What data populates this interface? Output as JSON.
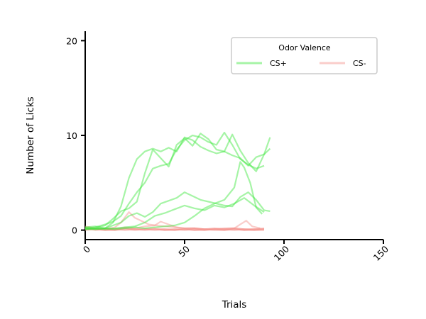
{
  "chart_data": {
    "type": "line",
    "title": "",
    "xlabel": "Trials",
    "ylabel": "Number of Licks",
    "xlim": [
      0,
      150
    ],
    "ylim": [
      -1,
      21
    ],
    "xticks": [
      0,
      50,
      100,
      150
    ],
    "yticks": [
      0,
      10,
      20
    ],
    "grid": false,
    "legend": {
      "title": "Odor Valence",
      "placement": "top-right",
      "entries": [
        {
          "label": "CS+",
          "color": "#39e639"
        },
        {
          "label": "CS-",
          "color": "#f4908a"
        }
      ]
    },
    "series": [
      {
        "group": "CS+",
        "color": "#39e639",
        "x": [
          0,
          5,
          10,
          14,
          18,
          22,
          26,
          30,
          34,
          38,
          42,
          46,
          50,
          54,
          58,
          62,
          66,
          70,
          74,
          78,
          82,
          86,
          90,
          93
        ],
        "y": [
          0.3,
          0.4,
          0.2,
          0.8,
          2.5,
          5.5,
          7.5,
          8.3,
          8.6,
          8.3,
          8.7,
          8.3,
          9.8,
          9.5,
          8.8,
          8.4,
          8.1,
          8.3,
          7.9,
          7.6,
          6.8,
          7.7,
          8.0,
          8.6
        ]
      },
      {
        "group": "CS+",
        "color": "#39e639",
        "x": [
          0,
          5,
          10,
          14,
          18,
          22,
          26,
          30,
          34,
          38,
          42,
          46,
          50,
          54,
          58,
          62,
          66,
          70,
          74,
          78,
          82,
          86,
          90,
          93
        ],
        "y": [
          0.1,
          0.2,
          0.5,
          1.2,
          2.0,
          2.3,
          3.0,
          6.0,
          8.5,
          7.6,
          6.7,
          9.0,
          9.7,
          8.9,
          10.2,
          9.6,
          8.5,
          8.3,
          10.1,
          8.4,
          7.1,
          6.2,
          8.0,
          9.8
        ]
      },
      {
        "group": "CS+",
        "color": "#39e639",
        "x": [
          0,
          5,
          10,
          14,
          18,
          22,
          26,
          30,
          34,
          38,
          42,
          46,
          50,
          54,
          58,
          62,
          66,
          70,
          74,
          78,
          82,
          86,
          90
        ],
        "y": [
          0.2,
          0.3,
          0.6,
          0.9,
          1.5,
          2.8,
          4.0,
          5.0,
          6.5,
          6.8,
          7.0,
          8.5,
          9.5,
          10.0,
          9.8,
          9.3,
          9.0,
          10.3,
          9.0,
          7.5,
          6.9,
          6.5,
          6.8
        ]
      },
      {
        "group": "CS+",
        "color": "#39e639",
        "x": [
          0,
          5,
          10,
          14,
          18,
          22,
          26,
          30,
          34,
          38,
          42,
          46,
          50,
          54,
          58,
          62,
          66,
          70,
          74,
          78,
          82,
          86,
          90,
          93
        ],
        "y": [
          0.3,
          0.1,
          0.2,
          0.5,
          0.8,
          1.5,
          1.8,
          1.4,
          1.9,
          2.8,
          3.1,
          3.4,
          4.0,
          3.6,
          3.2,
          3.0,
          2.8,
          2.6,
          2.5,
          3.5,
          4.0,
          3.2,
          2.1,
          2.0
        ]
      },
      {
        "group": "CS+",
        "color": "#39e639",
        "x": [
          0,
          5,
          10,
          15,
          20,
          25,
          30,
          35,
          40,
          45,
          50,
          55,
          60,
          65,
          70,
          75,
          80,
          85,
          90
        ],
        "y": [
          0.1,
          0.2,
          0.1,
          0.2,
          0.3,
          0.4,
          0.8,
          1.5,
          1.8,
          2.2,
          2.6,
          2.3,
          2.1,
          2.6,
          2.4,
          2.8,
          3.4,
          2.6,
          1.9
        ]
      },
      {
        "group": "CS+",
        "color": "#39e639",
        "x": [
          0,
          5,
          10,
          15,
          20,
          25,
          30,
          35,
          40,
          45,
          50,
          55,
          60,
          65,
          70,
          75,
          78,
          80,
          83,
          86,
          89
        ],
        "y": [
          0.1,
          0.1,
          0.2,
          0.1,
          0.2,
          0.3,
          0.2,
          0.3,
          0.4,
          0.5,
          0.8,
          1.5,
          2.3,
          2.8,
          3.2,
          4.5,
          7.2,
          6.6,
          5.0,
          2.4,
          1.7
        ]
      },
      {
        "group": "CS-",
        "color": "#f4908a",
        "x": [
          0,
          5,
          10,
          15,
          18,
          22,
          25,
          28,
          32,
          36,
          40,
          45,
          50,
          55,
          60,
          65,
          70,
          75,
          80,
          85,
          90
        ],
        "y": [
          0.4,
          0.2,
          0.1,
          0.3,
          0.8,
          1.9,
          1.3,
          1.0,
          0.6,
          0.5,
          0.4,
          0.3,
          0.2,
          0.2,
          0.1,
          0.2,
          0.1,
          0.2,
          0.1,
          0.1,
          0.1
        ]
      },
      {
        "group": "CS-",
        "color": "#f4908a",
        "x": [
          0,
          5,
          10,
          15,
          20,
          25,
          30,
          35,
          38,
          42,
          46,
          50,
          55,
          60,
          65,
          70,
          75,
          80,
          85,
          90
        ],
        "y": [
          0.2,
          0.1,
          0.2,
          0.1,
          0.3,
          0.2,
          0.4,
          0.5,
          0.9,
          0.6,
          0.3,
          0.2,
          0.2,
          0.1,
          0.1,
          0.1,
          0.2,
          0.1,
          0.1,
          0.2
        ]
      },
      {
        "group": "CS-",
        "color": "#f4908a",
        "x": [
          0,
          5,
          10,
          15,
          20,
          25,
          30,
          35,
          40,
          45,
          50,
          55,
          60,
          65,
          70,
          75,
          78,
          81,
          84,
          88
        ],
        "y": [
          0.1,
          0.1,
          0.1,
          0.1,
          0.2,
          0.1,
          0.1,
          0.2,
          0.1,
          0.1,
          0.1,
          0.2,
          0.1,
          0.1,
          0.2,
          0.2,
          0.6,
          1.0,
          0.4,
          0.2
        ]
      },
      {
        "group": "CS-",
        "color": "#f4908a",
        "x": [
          0,
          5,
          10,
          15,
          20,
          25,
          30,
          35,
          40,
          45,
          50,
          55,
          60,
          65,
          70,
          75,
          80,
          85,
          90
        ],
        "y": [
          0.0,
          0.1,
          0.0,
          0.1,
          0.0,
          0.1,
          0.1,
          0.0,
          0.1,
          0.0,
          0.1,
          0.0,
          0.1,
          0.0,
          0.0,
          0.1,
          0.0,
          0.1,
          0.1
        ]
      },
      {
        "group": "CS-",
        "color": "#f4908a",
        "x": [
          0,
          5,
          10,
          15,
          20,
          25,
          30,
          35,
          40,
          45,
          50,
          55,
          60,
          65,
          70,
          75,
          80,
          85,
          90
        ],
        "y": [
          0.2,
          0.0,
          0.1,
          0.0,
          0.2,
          0.1,
          0.0,
          0.1,
          0.0,
          0.1,
          0.0,
          0.1,
          0.0,
          0.1,
          0.1,
          0.0,
          0.1,
          0.0,
          0.0
        ]
      },
      {
        "group": "CS-",
        "color": "#f4908a",
        "x": [
          0,
          5,
          10,
          15,
          20,
          25,
          30,
          35,
          40,
          45,
          50,
          55,
          60,
          65,
          70,
          75,
          80,
          85,
          90
        ],
        "y": [
          0.1,
          0.1,
          0.0,
          0.0,
          0.1,
          0.0,
          0.1,
          0.1,
          0.0,
          0.0,
          0.1,
          0.0,
          0.0,
          0.1,
          0.0,
          0.1,
          0.0,
          0.0,
          0.1
        ]
      }
    ]
  }
}
